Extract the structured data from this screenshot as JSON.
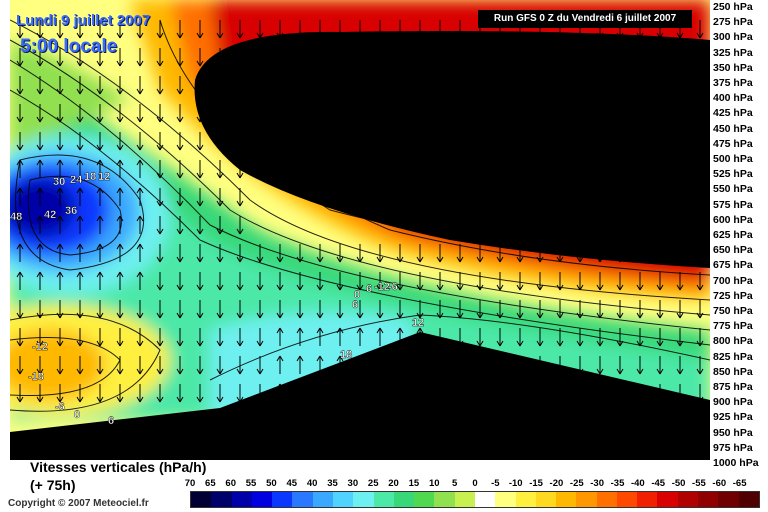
{
  "header": {
    "date": "Lundi 9 juillet 2007",
    "time": "5:00 locale",
    "run": "Run GFS 0 Z du Vendredi 6 juillet 2007"
  },
  "pressure_levels": [
    "250 hPa",
    "275 hPa",
    "300 hPa",
    "325 hPa",
    "350 hPa",
    "375 hPa",
    "400 hPa",
    "425 hPa",
    "450 hPa",
    "475 hPa",
    "500 hPa",
    "525 hPa",
    "550 hPa",
    "575 hPa",
    "600 hPa",
    "625 hPa",
    "650 hPa",
    "675 hPa",
    "700 hPa",
    "725 hPa",
    "750 hPa",
    "775 hPa",
    "800 hPa",
    "825 hPa",
    "850 hPa",
    "875 hPa",
    "900 hPa",
    "925 hPa",
    "950 hPa",
    "975 hPa",
    "1000 hPa"
  ],
  "contour_labels": [
    "48",
    "42",
    "36",
    "30",
    "24",
    "18",
    "12",
    "0",
    "6",
    "-12",
    "-18",
    "-6",
    "0",
    "6",
    "12",
    "18",
    "6",
    "-6",
    "-12"
  ],
  "caption": {
    "line1": "Vitesses verticales (hPa/h)",
    "line2": "(+ 75h)"
  },
  "copyright": "Copyright © 2007 Meteociel.fr",
  "legend": {
    "labels": [
      "70",
      "65",
      "60",
      "55",
      "50",
      "45",
      "40",
      "35",
      "30",
      "25",
      "20",
      "15",
      "10",
      "5",
      "0",
      "-5",
      "-10",
      "-15",
      "-20",
      "-25",
      "-30",
      "-35",
      "-40",
      "-45",
      "-50",
      "-55",
      "-60",
      "-65"
    ],
    "colors": [
      "#000033",
      "#00006b",
      "#0000a8",
      "#0000e0",
      "#0a38ff",
      "#2a78ff",
      "#3aa8ff",
      "#50d4ff",
      "#6ef0f0",
      "#4ce8a8",
      "#38d878",
      "#50d850",
      "#90e050",
      "#c8f050",
      "#ffffff",
      "#ffff80",
      "#fff040",
      "#ffd820",
      "#ffb800",
      "#ff9800",
      "#ff7000",
      "#ff4800",
      "#f02000",
      "#d80000",
      "#b00000",
      "#900000",
      "#700000",
      "#500000"
    ]
  }
}
